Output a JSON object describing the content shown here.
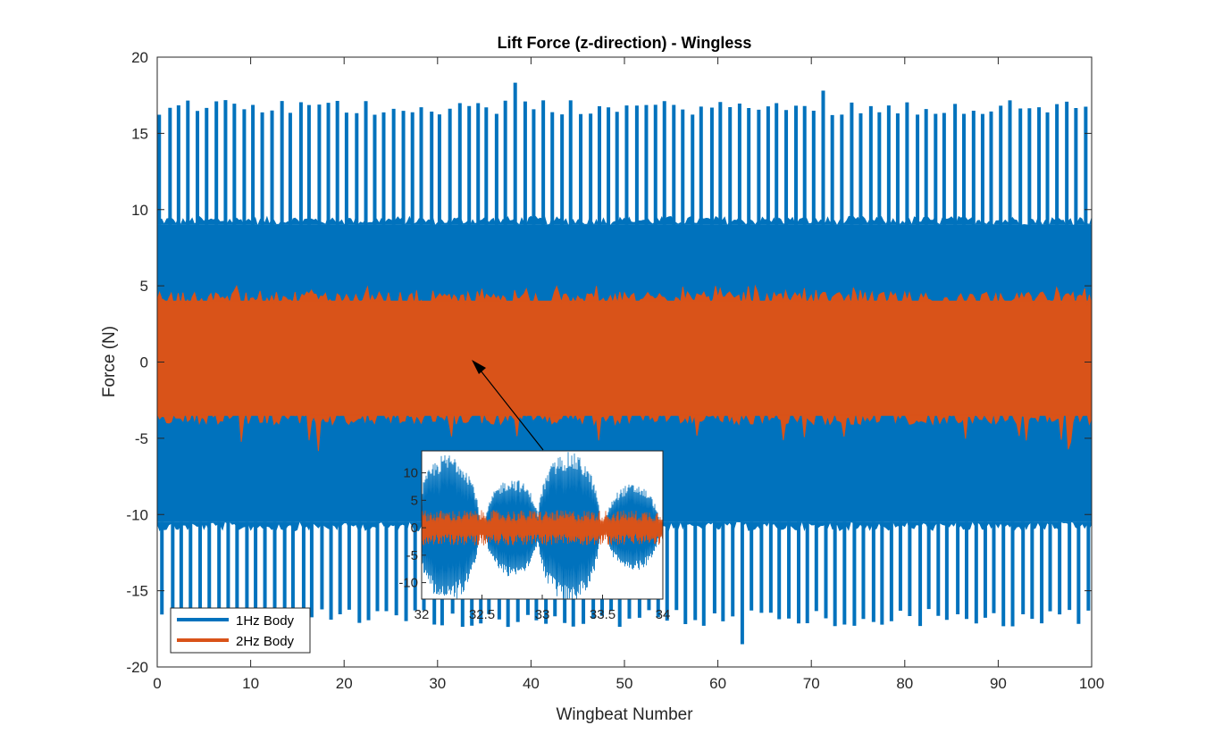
{
  "chart_data": [
    {
      "type": "line",
      "title": "Lift Force (z-direction) - Wingless",
      "xlabel": "Wingbeat Number",
      "ylabel": "Force (N)",
      "xlim": [
        0,
        100
      ],
      "ylim": [
        -20,
        20
      ],
      "xticks": [
        "0",
        "10",
        "20",
        "30",
        "40",
        "50",
        "60",
        "70",
        "80",
        "90",
        "100"
      ],
      "yticks": [
        "-20",
        "-15",
        "-10",
        "-5",
        "0",
        "5",
        "10",
        "15",
        "20"
      ],
      "grid": false,
      "legend_position": "bottom-left",
      "series": [
        {
          "name": "1Hz Body",
          "color": "#0072BD",
          "band_min": -10.5,
          "band_max": 9,
          "peak_period": 2,
          "peak_max": [
            16.5,
            17.3,
            18.0,
            17.5
          ],
          "peak_min": [
            -16.5,
            -17.0,
            -17.8
          ]
        },
        {
          "name": "2Hz Body",
          "color": "#D95319",
          "band_min": -3.5,
          "band_max": 4,
          "spike_max": 5,
          "spike_min": -6
        }
      ],
      "annotation": "arrow-from-inset-to-main"
    },
    {
      "type": "line",
      "role": "inset",
      "xlim": [
        32,
        34
      ],
      "ylim": [
        -13,
        14
      ],
      "xticks": [
        "32",
        "32.5",
        "33",
        "33.5",
        "34"
      ],
      "yticks": [
        "-10",
        "-5",
        "0",
        "5",
        "10"
      ],
      "series": [
        {
          "name": "1Hz Body",
          "color": "#0072BD"
        },
        {
          "name": "2Hz Body",
          "color": "#D95319"
        }
      ]
    }
  ]
}
